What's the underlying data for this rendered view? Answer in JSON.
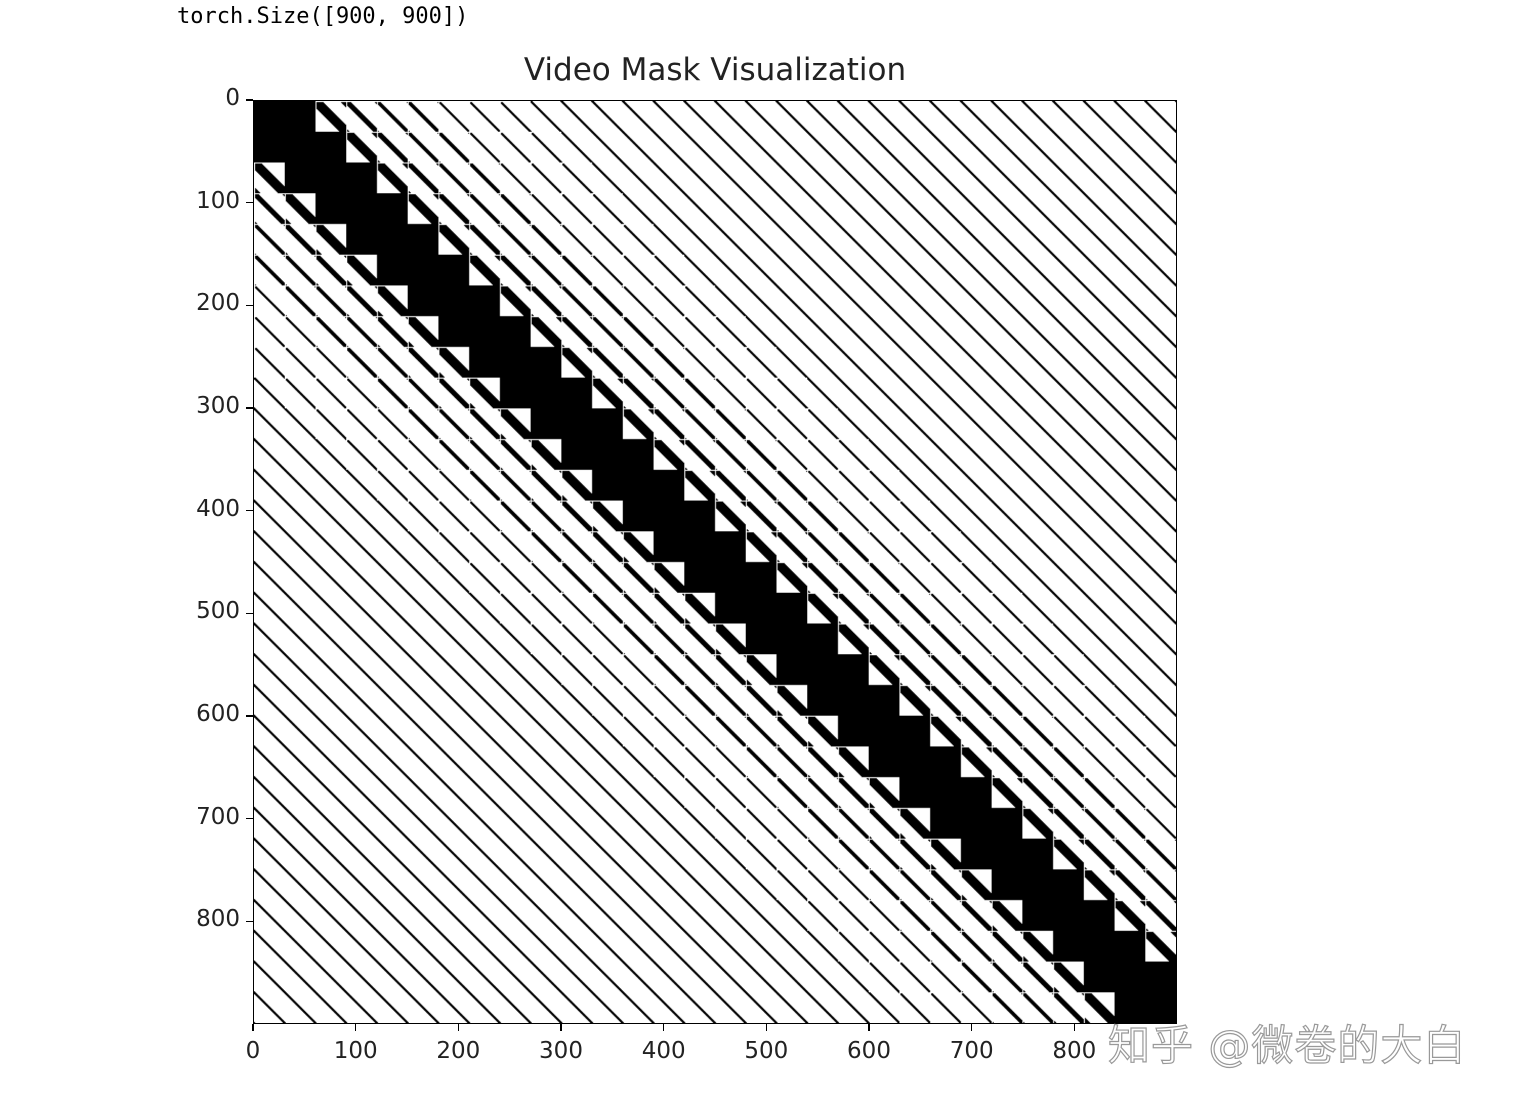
{
  "output_text": "torch.Size([900, 900])",
  "watermark": "知乎 @微卷的大白",
  "chart_data": {
    "type": "heatmap",
    "title": "Video Mask Visualization",
    "shape": [
      900,
      900
    ],
    "colormap": "binary",
    "colors": {
      "masked": "#000000",
      "unmasked": "#ffffff"
    },
    "xlim": [
      0,
      900
    ],
    "ylim": [
      900,
      0
    ],
    "xticks": [
      "0",
      "100",
      "200",
      "300",
      "400",
      "500",
      "600",
      "700",
      "800"
    ],
    "yticks": [
      "0",
      "100",
      "200",
      "300",
      "400",
      "500",
      "600",
      "700",
      "800"
    ],
    "grid": false
  }
}
